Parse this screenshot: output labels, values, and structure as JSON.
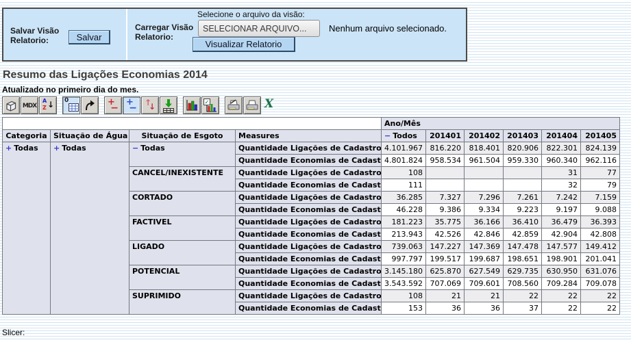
{
  "save_panel": {
    "save_label": "Salvar Visão Relatorio:",
    "save_button": "Salvar",
    "load_label": "Carregar Visão Relatorio:",
    "file_prompt": "Selecione o arquivo da visão:",
    "file_button": "SELECIONAR ARQUIVO...",
    "file_status": "Nenhum arquivo selecionado.",
    "view_button": "Visualizar Relatorio"
  },
  "report": {
    "title": "Resumo das Ligações Economias 2014",
    "subtitle": "Atualizado no primeiro dia do mes."
  },
  "toolbar": {
    "accent_pressed_color": "#cfe3f6",
    "buttons": [
      {
        "name": "olap-navigator"
      },
      {
        "name": "mdx-editor",
        "g1": "MDX"
      },
      {
        "name": "sort",
        "g1": "A",
        "g2": "Z",
        "g3": "↓"
      },
      {
        "name": "show-parents",
        "g1": "0",
        "pressed": true
      },
      {
        "name": "swap-axes"
      },
      {
        "name": "drill-member",
        "g1": "+",
        "g2": "−"
      },
      {
        "name": "drill-position",
        "g1": "+",
        "g2": "−",
        "pressed": true
      },
      {
        "name": "drill-replace",
        "g1": "↑",
        "g2": "↓"
      },
      {
        "name": "drill-through"
      },
      {
        "name": "show-chart"
      },
      {
        "name": "chart-config",
        "g1": "✓"
      },
      {
        "name": "print-config"
      },
      {
        "name": "print"
      },
      {
        "name": "export-excel",
        "g1": "X"
      }
    ]
  },
  "pivot": {
    "header_color": "#dfe1ec",
    "col_dimension": "Ano/Mês",
    "row_headers": [
      "Categoria",
      "Situação de Água",
      "Situação de Esgoto",
      "Measures"
    ],
    "columns": [
      {
        "expander": "−",
        "label": "Todos"
      },
      {
        "label": "201401"
      },
      {
        "label": "201402"
      },
      {
        "label": "201403"
      },
      {
        "label": "201404"
      },
      {
        "label": "201405"
      }
    ],
    "categoria": {
      "expander": "+",
      "label": "Todas"
    },
    "agua": {
      "expander": "+",
      "label": "Todas"
    },
    "groups": [
      {
        "esgoto": "Todas",
        "expander": "−",
        "indent": 0,
        "measures": [
          {
            "label": "Quantidade Ligações de Cadastro",
            "values": [
              "4.101.967",
              "816.220",
              "818.401",
              "820.906",
              "822.301",
              "824.139"
            ]
          },
          {
            "label": "Quantidade Economias de Cadastro",
            "values": [
              "4.801.824",
              "958.534",
              "961.504",
              "959.330",
              "960.340",
              "962.116"
            ]
          }
        ]
      },
      {
        "esgoto": "CANCEL/INEXISTENTE",
        "indent": 1,
        "measures": [
          {
            "label": "Quantidade Ligações de Cadastro",
            "values": [
              "108",
              "",
              "",
              "",
              "31",
              "77"
            ]
          },
          {
            "label": "Quantidade Economias de Cadastro",
            "values": [
              "111",
              "",
              "",
              "",
              "32",
              "79"
            ]
          }
        ]
      },
      {
        "esgoto": "CORTADO",
        "indent": 1,
        "measures": [
          {
            "label": "Quantidade Ligações de Cadastro",
            "values": [
              "36.285",
              "7.327",
              "7.296",
              "7.261",
              "7.242",
              "7.159"
            ]
          },
          {
            "label": "Quantidade Economias de Cadastro",
            "values": [
              "46.228",
              "9.386",
              "9.334",
              "9.223",
              "9.197",
              "9.088"
            ]
          }
        ]
      },
      {
        "esgoto": "FACTIVEL",
        "indent": 1,
        "measures": [
          {
            "label": "Quantidade Ligações de Cadastro",
            "values": [
              "181.223",
              "35.775",
              "36.166",
              "36.410",
              "36.479",
              "36.393"
            ]
          },
          {
            "label": "Quantidade Economias de Cadastro",
            "values": [
              "213.943",
              "42.526",
              "42.846",
              "42.859",
              "42.904",
              "42.808"
            ]
          }
        ]
      },
      {
        "esgoto": "LIGADO",
        "indent": 1,
        "measures": [
          {
            "label": "Quantidade Ligações de Cadastro",
            "values": [
              "739.063",
              "147.227",
              "147.369",
              "147.478",
              "147.577",
              "149.412"
            ]
          },
          {
            "label": "Quantidade Economias de Cadastro",
            "values": [
              "997.797",
              "199.517",
              "199.687",
              "198.651",
              "198.901",
              "201.041"
            ]
          }
        ]
      },
      {
        "esgoto": "POTENCIAL",
        "indent": 1,
        "measures": [
          {
            "label": "Quantidade Ligações de Cadastro",
            "values": [
              "3.145.180",
              "625.870",
              "627.549",
              "629.735",
              "630.950",
              "631.076"
            ]
          },
          {
            "label": "Quantidade Economias de Cadastro",
            "values": [
              "3.543.592",
              "707.069",
              "709.601",
              "708.560",
              "709.284",
              "709.078"
            ]
          }
        ]
      },
      {
        "esgoto": "SUPRIMIDO",
        "indent": 1,
        "measures": [
          {
            "label": "Quantidade Ligações de Cadastro",
            "values": [
              "108",
              "21",
              "21",
              "22",
              "22",
              "22"
            ]
          },
          {
            "label": "Quantidade Economias de Cadastro",
            "values": [
              "153",
              "36",
              "36",
              "37",
              "22",
              "22"
            ]
          }
        ]
      }
    ]
  },
  "footer": {
    "slicer_label": "Slicer:"
  }
}
